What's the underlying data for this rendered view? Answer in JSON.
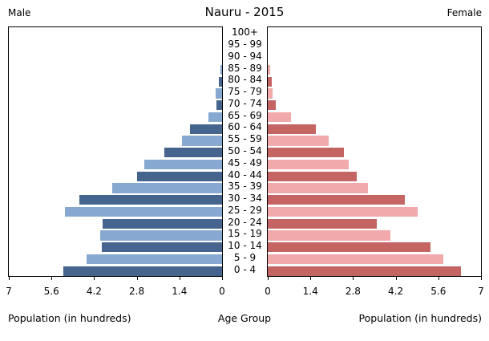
{
  "title": "Nauru - 2015",
  "left_header": "Male",
  "right_header": "Female",
  "axis": {
    "xlabel_left": "Population (in hundreds)",
    "xlabel_center": "Age Group",
    "xlabel_right": "Population (in hundreds)",
    "male_ticks": [
      "7",
      "5.6",
      "4.2",
      "2.8",
      "1.4",
      "0"
    ],
    "female_ticks": [
      "0",
      "1.4",
      "2.8",
      "4.2",
      "5.6",
      "7"
    ],
    "max_value": 7
  },
  "colors": {
    "male_dark": "#45658e",
    "male_light": "#87a8d0",
    "female_dark": "#c46463",
    "female_light": "#f2a9ab",
    "axis_color": "#000000",
    "background": "#ffffff"
  },
  "chart_data": {
    "type": "bar",
    "subtype": "population-pyramid",
    "title": "Nauru - 2015",
    "xlabel": "Population (in hundreds)",
    "ylabel": "Age Group",
    "xlim_each_side": [
      0,
      7
    ],
    "grid": false,
    "categories_top_to_bottom": [
      "100+",
      "95 - 99",
      "90 - 94",
      "85 - 89",
      "80 - 84",
      "75 - 79",
      "70 - 74",
      "65 - 69",
      "60 - 64",
      "55 - 59",
      "50 - 54",
      "45 - 49",
      "40 - 44",
      "35 - 39",
      "30 - 34",
      "25 - 29",
      "20 - 24",
      "15 - 19",
      "10 - 14",
      "5 - 9",
      "0 - 4"
    ],
    "series": [
      {
        "name": "Male",
        "side": "left",
        "values": [
          0,
          0,
          0,
          0.05,
          0.1,
          0.21,
          0.18,
          0.45,
          1.06,
          1.31,
          1.9,
          2.56,
          2.78,
          3.6,
          4.68,
          5.15,
          3.91,
          4.0,
          3.96,
          4.46,
          5.22
        ]
      },
      {
        "name": "Female",
        "side": "right",
        "values": [
          0,
          0,
          0,
          0.08,
          0.12,
          0.15,
          0.26,
          0.77,
          1.58,
          2.0,
          2.5,
          2.65,
          2.91,
          3.3,
          4.5,
          4.92,
          3.57,
          4.03,
          5.34,
          5.75,
          6.34
        ]
      }
    ]
  }
}
